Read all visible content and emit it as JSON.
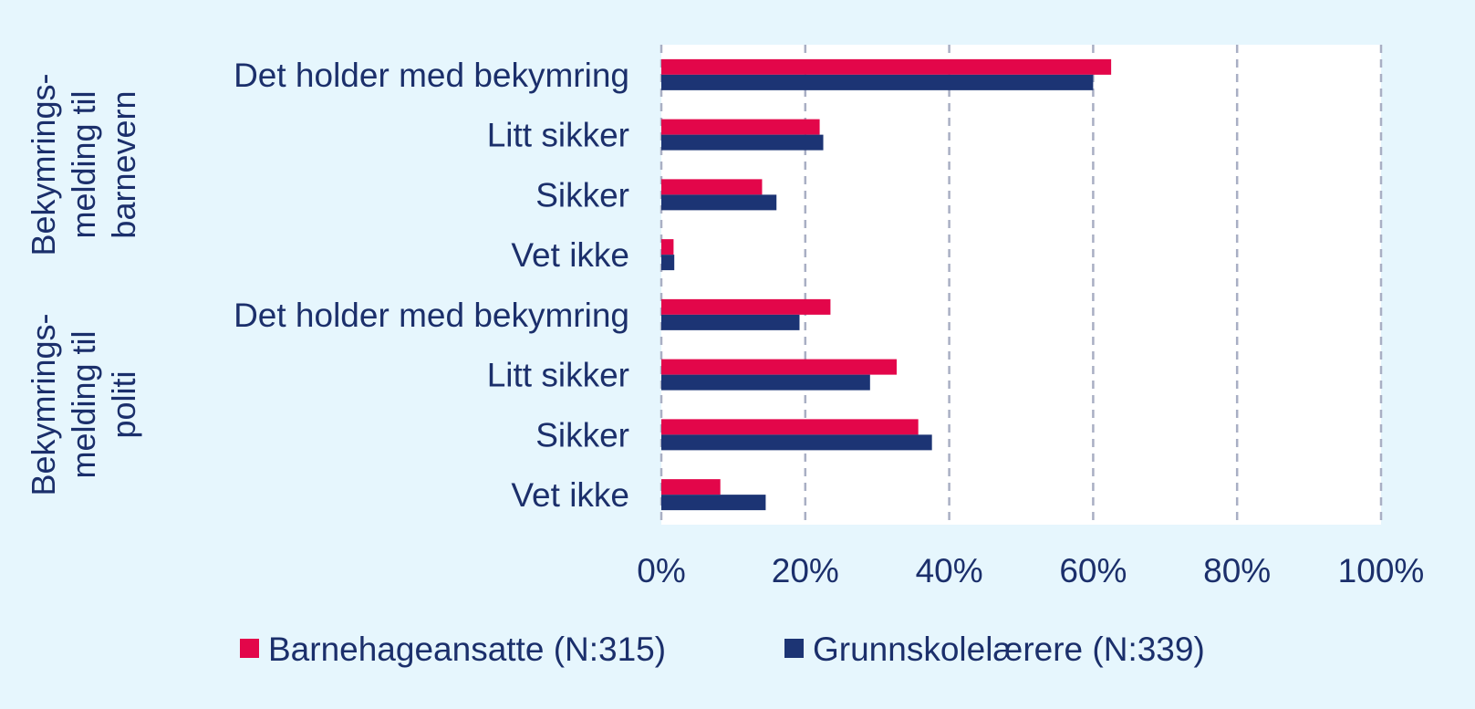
{
  "chart_data": {
    "type": "bar",
    "orientation": "horizontal",
    "groups": [
      {
        "label_lines": [
          "Bekymrings-",
          "melding til",
          "barnevern"
        ],
        "categories": [
          "Det holder med bekymring",
          "Litt sikker",
          "Sikker",
          "Vet ikke"
        ]
      },
      {
        "label_lines": [
          "Bekymrings-",
          "melding til",
          "politi"
        ],
        "categories": [
          "Det holder med bekymring",
          "Litt sikker",
          "Sikker",
          "Vet ikke"
        ]
      }
    ],
    "series": [
      {
        "name": "Barnehageansatte (N:315)",
        "color": "#e3064a",
        "values": [
          62.5,
          22,
          14,
          1.7,
          23.5,
          32.7,
          35.7,
          8.2
        ]
      },
      {
        "name": "Grunnskolelærere (N:339)",
        "color": "#1c3474",
        "values": [
          60,
          22.5,
          16,
          1.8,
          19.2,
          29,
          37.6,
          14.5
        ]
      }
    ],
    "xlim": [
      0,
      100
    ],
    "xticks": [
      "0%",
      "20%",
      "40%",
      "60%",
      "80%",
      "100%"
    ],
    "grid": true,
    "legend_position": "bottom"
  },
  "colors": {
    "background": "#e6f6fd",
    "plot_background": "#ffffff",
    "text": "#1b2f6b",
    "grid": "#a9afc4"
  }
}
